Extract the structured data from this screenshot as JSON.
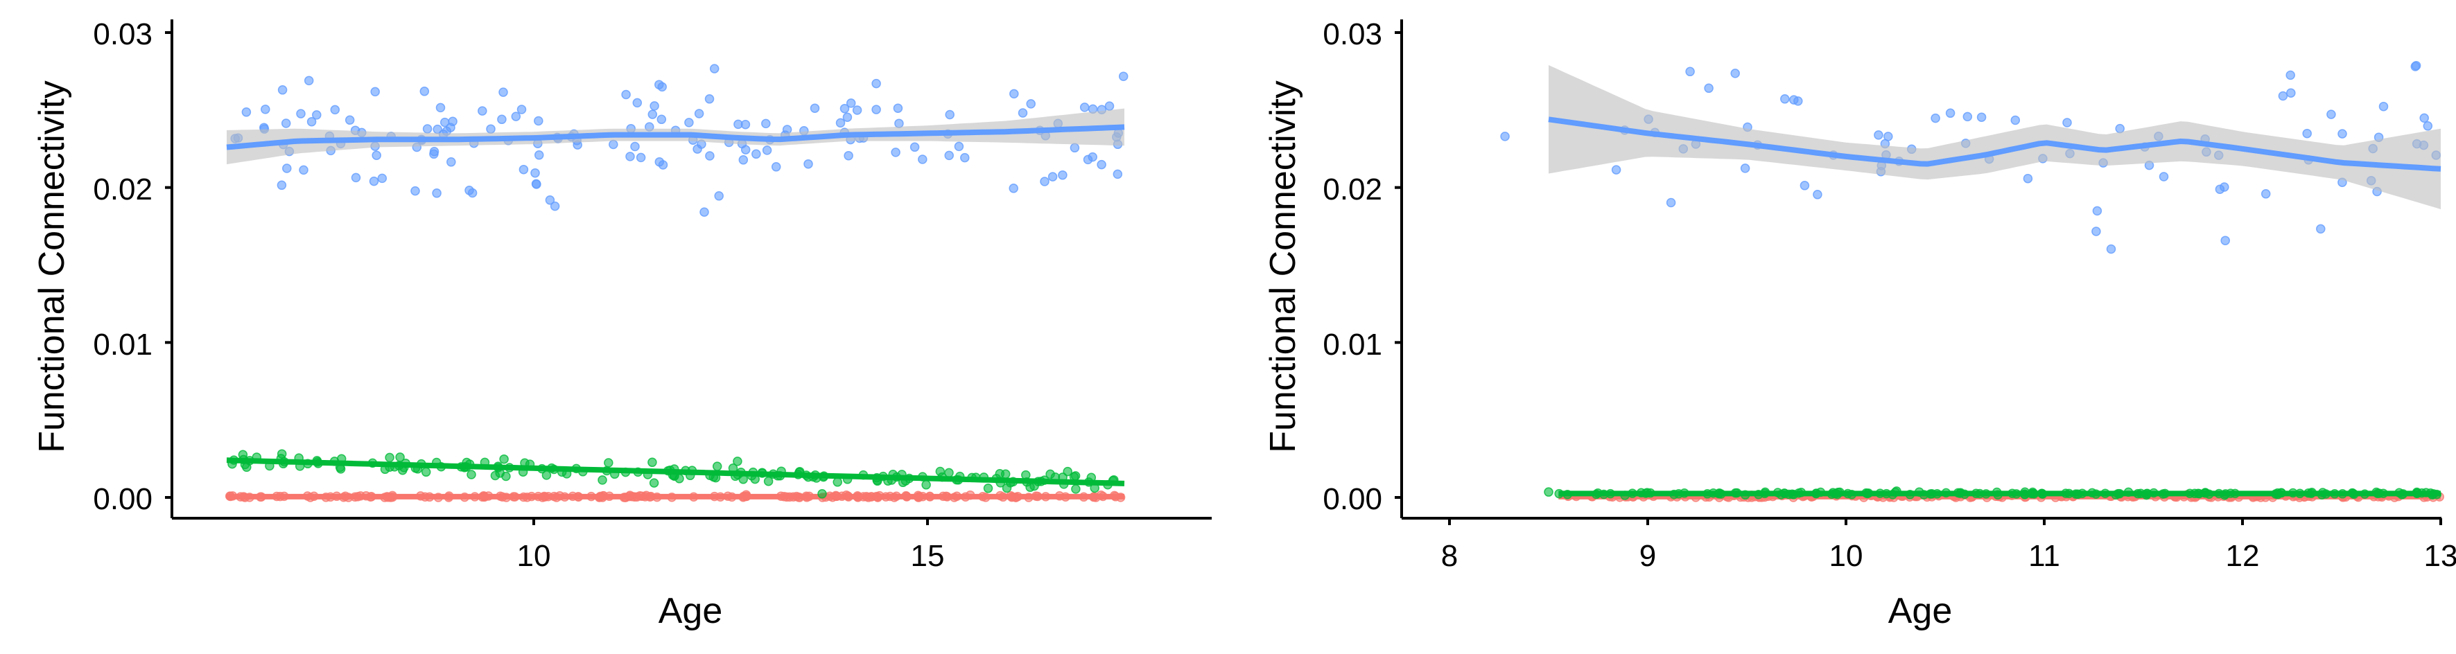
{
  "chart_data": [
    {
      "type": "scatter",
      "xlabel": "Age",
      "ylabel": "Functional Connectivity",
      "xlim": [
        5.5,
        18.7
      ],
      "ylim": [
        -0.0014,
        0.031
      ],
      "xticks": [
        10,
        15
      ],
      "yticks": [
        0.0,
        0.01,
        0.02,
        0.03
      ],
      "ytick_labels": [
        "0.00",
        "0.01",
        "0.02",
        "0.03"
      ],
      "xtick_labels": [
        "10",
        "15"
      ],
      "point_x_range": [
        6.1,
        17.5
      ],
      "series": [
        {
          "color": "#619CFF",
          "scatter": {
            "n": 160,
            "mean": 0.0232,
            "sd": 0.0019
          },
          "smooth_x": [
            6.1,
            7.0,
            8.0,
            9.0,
            10.0,
            11.0,
            12.0,
            12.6,
            13.1,
            14.0,
            15.0,
            16.0,
            17.5
          ],
          "smooth_y": [
            0.0226,
            0.023,
            0.0231,
            0.0231,
            0.0232,
            0.0234,
            0.0234,
            0.0232,
            0.0231,
            0.0234,
            0.0235,
            0.0236,
            0.0239
          ],
          "band_halfwidth": [
            0.0011,
            0.0008,
            0.0005,
            0.0004,
            0.0004,
            0.0004,
            0.0004,
            0.0004,
            0.0004,
            0.0004,
            0.0005,
            0.0007,
            0.0012
          ]
        },
        {
          "color": "#00BA38",
          "scatter": {
            "n": 170,
            "mean_start": 0.0024,
            "mean_end": 0.0009,
            "sd": 0.00028
          },
          "smooth_x": [
            6.1,
            17.5
          ],
          "smooth_y": [
            0.0024,
            0.0009
          ],
          "band_halfwidth": [
            0.0001,
            0.0001
          ]
        },
        {
          "color": "#F8766D",
          "scatter": {
            "n": 180,
            "mean": 5e-05,
            "sd": 4e-05
          },
          "smooth_x": [
            6.1,
            17.5
          ],
          "smooth_y": [
            5e-05,
            5e-05
          ],
          "band_halfwidth": [
            3e-05,
            3e-05
          ]
        }
      ]
    },
    {
      "type": "scatter",
      "xlabel": "Age",
      "ylabel": "Functional Connectivity",
      "xlim": [
        7.75,
        13.3
      ],
      "ylim": [
        -0.0014,
        0.031
      ],
      "xticks": [
        8,
        9,
        10,
        11,
        12,
        13
      ],
      "yticks": [
        0.0,
        0.01,
        0.02,
        0.03
      ],
      "ytick_labels": [
        "0.00",
        "0.01",
        "0.02",
        "0.03"
      ],
      "xtick_labels": [
        "8",
        "9",
        "10",
        "11",
        "12",
        "13"
      ],
      "point_x_range": [
        8.5,
        13.0
      ],
      "series": [
        {
          "color": "#619CFF",
          "scatter_fixed": [
            [
              8.28,
              0.0233
            ]
          ],
          "scatter": {
            "n": 75,
            "mean": 0.0225,
            "sd": 0.0025,
            "x_range": [
              8.7,
              13.0
            ]
          },
          "smooth_x": [
            8.5,
            9.0,
            9.5,
            10.0,
            10.4,
            10.7,
            11.0,
            11.3,
            11.7,
            12.0,
            12.5,
            13.0
          ],
          "smooth_y": [
            0.0244,
            0.0235,
            0.0228,
            0.022,
            0.0215,
            0.0221,
            0.0229,
            0.0224,
            0.023,
            0.0225,
            0.0216,
            0.0212
          ],
          "band_halfwidth": [
            0.0035,
            0.0015,
            0.001,
            0.0009,
            0.001,
            0.0012,
            0.0012,
            0.001,
            0.0013,
            0.0011,
            0.0011,
            0.0026
          ]
        },
        {
          "color": "#00BA38",
          "scatter_fixed": [
            [
              8.5,
              0.00035
            ]
          ],
          "scatter": {
            "n": 150,
            "mean": 0.00025,
            "sd": 5e-05,
            "x_range": [
              8.55,
              13.0
            ]
          },
          "smooth_x": [
            8.55,
            13.0
          ],
          "smooth_y": [
            0.00025,
            0.00025
          ],
          "band_halfwidth": [
            4e-05,
            4e-05
          ]
        },
        {
          "color": "#F8766D",
          "scatter": {
            "n": 150,
            "mean": 5e-05,
            "sd": 4e-05,
            "x_range": [
              8.55,
              13.0
            ]
          },
          "smooth_x": [
            8.55,
            13.0
          ],
          "smooth_y": [
            5e-05,
            5e-05
          ],
          "band_halfwidth": [
            3e-05,
            3e-05
          ]
        }
      ]
    }
  ],
  "style": {
    "band_color": "#BEBEBE",
    "band_opacity": 0.6,
    "point_opacity": 0.6
  }
}
